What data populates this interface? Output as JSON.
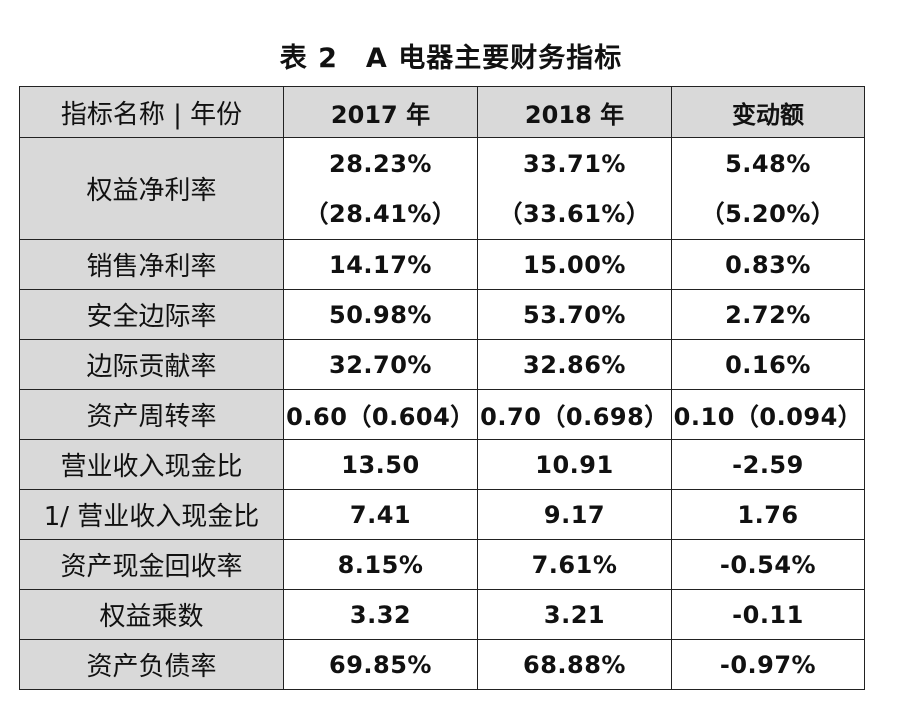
{
  "title": "表 2　A 电器主要财务指标",
  "header": {
    "name": "指标名称 | 年份",
    "y2017": "2017 年",
    "y2018": "2018 年",
    "change": "变动额"
  },
  "rows": [
    {
      "name": "权益净利率",
      "y2017": "28.23%",
      "y2017_alt": "（28.41%）",
      "y2018": "33.71%",
      "y2018_alt": "（33.61%）",
      "change": "5.48%",
      "change_alt": "（5.20%）"
    },
    {
      "name": "销售净利率",
      "y2017": "14.17%",
      "y2018": "15.00%",
      "change": "0.83%"
    },
    {
      "name": "安全边际率",
      "y2017": "50.98%",
      "y2018": "53.70%",
      "change": "2.72%"
    },
    {
      "name": "边际贡献率",
      "y2017": "32.70%",
      "y2018": "32.86%",
      "change": "0.16%"
    },
    {
      "name": "资产周转率",
      "y2017": "0.60（0.604）",
      "y2018": "0.70（0.698）",
      "change": "0.10（0.094）"
    },
    {
      "name": "营业收入现金比",
      "y2017": "13.50",
      "y2018": "10.91",
      "change": "-2.59"
    },
    {
      "name": "1/ 营业收入现金比",
      "y2017": "7.41",
      "y2018": "9.17",
      "change": "1.76"
    },
    {
      "name": "资产现金回收率",
      "y2017": "8.15%",
      "y2018": "7.61%",
      "change": "-0.54%"
    },
    {
      "name": "权益乘数",
      "y2017": "3.32",
      "y2018": "3.21",
      "change": "-0.11"
    },
    {
      "name": "资产负债率",
      "y2017": "69.85%",
      "y2018": "68.88%",
      "change": "-0.97%"
    }
  ]
}
